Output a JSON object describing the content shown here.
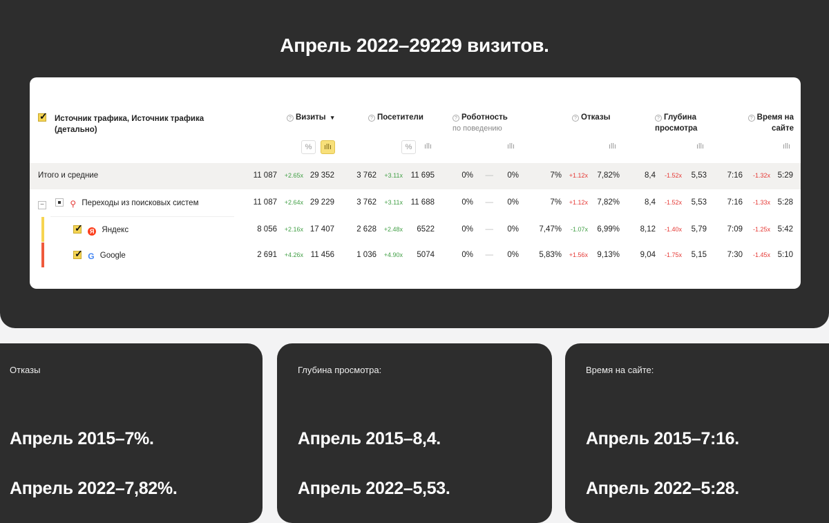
{
  "hero": {
    "title": "Апрель 2022–29229 визитов."
  },
  "table": {
    "name_header": "Источник трафика, Источник трафика (детально)",
    "columns": [
      {
        "title": "Визиты",
        "sub": "",
        "sort": "▾"
      },
      {
        "title": "Посетители",
        "sub": ""
      },
      {
        "title": "Роботность",
        "sub": "по поведению"
      },
      {
        "title": "Отказы",
        "sub": ""
      },
      {
        "title": "Глубина просмотра",
        "sub": ""
      },
      {
        "title": "Время на сайте",
        "sub": ""
      }
    ],
    "icons": {
      "percent": "%",
      "bars": "ıllı"
    },
    "rows": [
      {
        "name": "Итого и средние",
        "visits": [
          "11 087",
          "+2.65x",
          "29 352"
        ],
        "visitors": [
          "3 762",
          "+3.11x",
          "11 695"
        ],
        "robot": [
          "0%",
          "—",
          "0%"
        ],
        "bounce": [
          "7%",
          "+1.12x",
          "7,82%"
        ],
        "depth": [
          "8,4",
          "-1.52x",
          "5,53"
        ],
        "time": [
          "7:16",
          "-1.32x",
          "5:29"
        ]
      },
      {
        "name": "Переходы из поисковых систем",
        "visits": [
          "11 087",
          "+2.64x",
          "29 229"
        ],
        "visitors": [
          "3 762",
          "+3.11x",
          "11 688"
        ],
        "robot": [
          "0%",
          "—",
          "0%"
        ],
        "bounce": [
          "7%",
          "+1.12x",
          "7,82%"
        ],
        "depth": [
          "8,4",
          "-1.52x",
          "5,53"
        ],
        "time": [
          "7:16",
          "-1.33x",
          "5:28"
        ]
      },
      {
        "name": "Яндекс",
        "visits": [
          "8 056",
          "+2.16x",
          "17 407"
        ],
        "visitors": [
          "2 628",
          "+2.48x",
          "6522"
        ],
        "robot": [
          "0%",
          "—",
          "0%"
        ],
        "bounce": [
          "7,47%",
          "-1.07x",
          "6,99%"
        ],
        "depth": [
          "8,12",
          "-1.40x",
          "5,79"
        ],
        "time": [
          "7:09",
          "-1.25x",
          "5:42"
        ]
      },
      {
        "name": "Google",
        "visits": [
          "2 691",
          "+4.26x",
          "11 456"
        ],
        "visitors": [
          "1 036",
          "+4.90x",
          "5074"
        ],
        "robot": [
          "0%",
          "—",
          "0%"
        ],
        "bounce": [
          "5,83%",
          "+1.56x",
          "9,13%"
        ],
        "depth": [
          "9,04",
          "-1.75x",
          "5,15"
        ],
        "time": [
          "7:30",
          "-1.45x",
          "5:10"
        ]
      }
    ],
    "toggle": "−",
    "yandex_logo": "Я",
    "google_logo": "G",
    "search_icon": "magnifier-icon",
    "bar_colors": [
      "#f6d451",
      "#ef5a3c"
    ]
  },
  "cards": [
    {
      "label": "Отказы",
      "line1": "Апрель 2015–7%.",
      "line2": "Апрель 2022–7,82%."
    },
    {
      "label": "Глубина просмотра:",
      "line1": "Апрель 2015–8,4.",
      "line2": "Апрель 2022–5,53."
    },
    {
      "label": "Время на сайте:",
      "line1": "Апрель 2015–7:16.",
      "line2": "Апрель 2022–5:28."
    }
  ]
}
